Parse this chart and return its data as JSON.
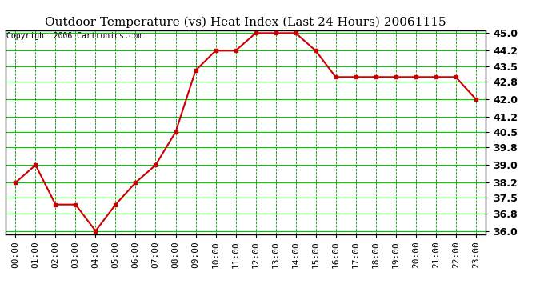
{
  "title": "Outdoor Temperature (vs) Heat Index (Last 24 Hours) 20061115",
  "copyright_text": "Copyright 2006 Cartronics.com",
  "x_labels": [
    "00:00",
    "01:00",
    "02:00",
    "03:00",
    "04:00",
    "05:00",
    "06:00",
    "07:00",
    "08:00",
    "09:00",
    "10:00",
    "11:00",
    "12:00",
    "13:00",
    "14:00",
    "15:00",
    "16:00",
    "17:00",
    "18:00",
    "19:00",
    "20:00",
    "21:00",
    "22:00",
    "23:00"
  ],
  "y_values": [
    38.2,
    39.0,
    37.2,
    37.2,
    36.0,
    37.2,
    38.2,
    39.0,
    40.5,
    43.3,
    44.2,
    44.2,
    45.0,
    45.0,
    45.0,
    44.2,
    43.0,
    43.0,
    43.0,
    43.0,
    43.0,
    43.0,
    43.0,
    42.0
  ],
  "y_ticks": [
    36.0,
    36.8,
    37.5,
    38.2,
    39.0,
    39.8,
    40.5,
    41.2,
    42.0,
    42.8,
    43.5,
    44.2,
    45.0
  ],
  "ylim": [
    35.86,
    45.14
  ],
  "line_color": "#cc0000",
  "marker_color": "#cc0000",
  "grid_h_color": "#00cc00",
  "grid_v_color": "#009900",
  "bg_color": "#ffffff",
  "plot_bg_color": "#ffffff",
  "title_fontsize": 11,
  "copyright_fontsize": 7,
  "tick_fontsize": 8,
  "ytick_fontsize": 9,
  "title_color": "#000000",
  "copyright_color": "#000000"
}
